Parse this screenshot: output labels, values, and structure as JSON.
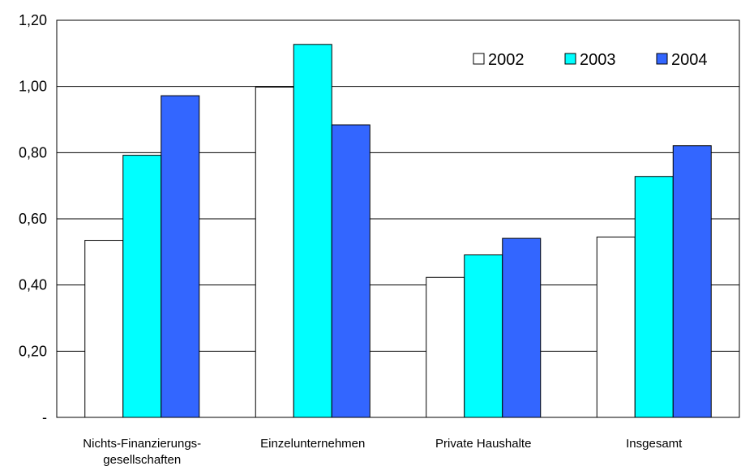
{
  "chart_data": {
    "type": "bar",
    "categories": [
      [
        "Nichts-Finanzierungs-",
        "gesellschaften"
      ],
      [
        "Einzelunternehmen"
      ],
      [
        "Private Haushalte"
      ],
      [
        "Insgesamt"
      ]
    ],
    "series": [
      {
        "name": "2002",
        "color": "#ffffff",
        "values": [
          0.535,
          0.998,
          0.423,
          0.545
        ]
      },
      {
        "name": "2003",
        "color": "#00ffff",
        "values": [
          0.792,
          1.127,
          0.491,
          0.728
        ]
      },
      {
        "name": "2004",
        "color": "#3366ff",
        "values": [
          0.972,
          0.884,
          0.541,
          0.821
        ]
      }
    ],
    "ylim": [
      0,
      1.2
    ],
    "yticks": [
      {
        "value": 0,
        "label": "-"
      },
      {
        "value": 0.2,
        "label": "0,20"
      },
      {
        "value": 0.4,
        "label": "0,40"
      },
      {
        "value": 0.6,
        "label": "0,60"
      },
      {
        "value": 0.8,
        "label": "0,80"
      },
      {
        "value": 1.0,
        "label": "1,00"
      },
      {
        "value": 1.2,
        "label": "1,20"
      }
    ],
    "grid": true,
    "legend_position": "top-right",
    "title": "",
    "xlabel": "",
    "ylabel": ""
  }
}
